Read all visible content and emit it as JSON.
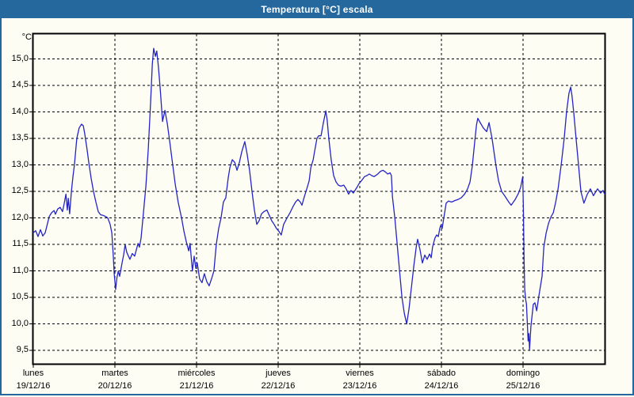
{
  "window": {
    "title": "Temperatura [°C] escala",
    "colors": {
      "title_bar": "#25689e",
      "title_text": "#ffffff",
      "window_border": "#25689e",
      "background": "#fdfdf4",
      "plot_border": "#000000",
      "grid": "#000000",
      "line": "#2424c6"
    }
  },
  "chart_data": {
    "type": "line",
    "title": "Temperatura [°C] escala",
    "ylabel": "°C",
    "xlabel": "",
    "ylim": [
      9.25,
      15.47
    ],
    "x_range_hours": [
      0,
      168
    ],
    "grid": "dashed",
    "legend": "none",
    "y_ticks": [
      {
        "value": 15.0,
        "label": "15,0"
      },
      {
        "value": 14.5,
        "label": "14,5"
      },
      {
        "value": 14.0,
        "label": "14,0"
      },
      {
        "value": 13.5,
        "label": "13,5"
      },
      {
        "value": 13.0,
        "label": "13,0"
      },
      {
        "value": 12.5,
        "label": "12,5"
      },
      {
        "value": 12.0,
        "label": "12,0"
      },
      {
        "value": 11.5,
        "label": "11,5"
      },
      {
        "value": 11.0,
        "label": "11,0"
      },
      {
        "value": 10.5,
        "label": "10,5"
      },
      {
        "value": 10.0,
        "label": "10,0"
      },
      {
        "value": 9.5,
        "label": "9,5"
      }
    ],
    "x_days": [
      {
        "name": "lunes",
        "date": "19/12/16"
      },
      {
        "name": "martes",
        "date": "20/12/16"
      },
      {
        "name": "miércoles",
        "date": "21/12/16"
      },
      {
        "name": "jueves",
        "date": "22/12/16"
      },
      {
        "name": "viernes",
        "date": "23/12/16"
      },
      {
        "name": "sábado",
        "date": "24/12/16"
      },
      {
        "name": "domingo",
        "date": "25/12/16"
      }
    ],
    "series": [
      {
        "name": "Temperatura",
        "color": "#2424c6",
        "points": [
          [
            0,
            11.72
          ],
          [
            0.7,
            11.76
          ],
          [
            1.4,
            11.65
          ],
          [
            2.1,
            11.78
          ],
          [
            2.8,
            11.66
          ],
          [
            3.5,
            11.72
          ],
          [
            4.2,
            11.9
          ],
          [
            4.7,
            12.03
          ],
          [
            5.4,
            12.1
          ],
          [
            6.1,
            12.14
          ],
          [
            6.5,
            12.07
          ],
          [
            7.2,
            12.17
          ],
          [
            7.9,
            12.2
          ],
          [
            8.6,
            12.12
          ],
          [
            9.1,
            12.28
          ],
          [
            9.6,
            12.45
          ],
          [
            10,
            12.15
          ],
          [
            10.3,
            12.37
          ],
          [
            10.7,
            12.08
          ],
          [
            11.2,
            12.5
          ],
          [
            11.7,
            12.8
          ],
          [
            12.1,
            13.0
          ],
          [
            12.8,
            13.5
          ],
          [
            13.5,
            13.7
          ],
          [
            14.2,
            13.77
          ],
          [
            14.7,
            13.74
          ],
          [
            15.1,
            13.6
          ],
          [
            15.8,
            13.3
          ],
          [
            16.3,
            13.05
          ],
          [
            17,
            12.75
          ],
          [
            17.7,
            12.5
          ],
          [
            18.4,
            12.3
          ],
          [
            19.1,
            12.12
          ],
          [
            19.8,
            12.06
          ],
          [
            20.5,
            12.05
          ],
          [
            21.2,
            12.03
          ],
          [
            21.9,
            12.0
          ],
          [
            22.6,
            11.88
          ],
          [
            23.1,
            11.72
          ],
          [
            23.5,
            11.3
          ],
          [
            23.8,
            10.95
          ],
          [
            24.2,
            10.65
          ],
          [
            24.6,
            10.88
          ],
          [
            25,
            11.0
          ],
          [
            25.4,
            10.9
          ],
          [
            26.1,
            11.15
          ],
          [
            26.6,
            11.32
          ],
          [
            27,
            11.5
          ],
          [
            27.5,
            11.35
          ],
          [
            28.4,
            11.22
          ],
          [
            29.1,
            11.33
          ],
          [
            29.8,
            11.28
          ],
          [
            30.8,
            11.52
          ],
          [
            31.2,
            11.45
          ],
          [
            31.7,
            11.62
          ],
          [
            32.4,
            12.1
          ],
          [
            33.1,
            12.6
          ],
          [
            33.8,
            13.3
          ],
          [
            34.5,
            14.2
          ],
          [
            35,
            14.9
          ],
          [
            35.4,
            15.2
          ],
          [
            35.9,
            15.05
          ],
          [
            36.3,
            15.15
          ],
          [
            36.8,
            14.85
          ],
          [
            37.3,
            14.45
          ],
          [
            38,
            13.82
          ],
          [
            38.7,
            14.03
          ],
          [
            39.4,
            13.78
          ],
          [
            40.1,
            13.45
          ],
          [
            40.8,
            13.1
          ],
          [
            41.7,
            12.65
          ],
          [
            42.6,
            12.3
          ],
          [
            43.6,
            12.0
          ],
          [
            44.3,
            11.75
          ],
          [
            45,
            11.55
          ],
          [
            45.7,
            11.38
          ],
          [
            46.1,
            11.52
          ],
          [
            46.8,
            11.0
          ],
          [
            47.3,
            11.28
          ],
          [
            47.8,
            11.05
          ],
          [
            48.2,
            11.15
          ],
          [
            48.9,
            10.85
          ],
          [
            49.6,
            10.78
          ],
          [
            50.3,
            10.95
          ],
          [
            51,
            10.8
          ],
          [
            51.7,
            10.72
          ],
          [
            52.4,
            10.85
          ],
          [
            53.1,
            11.0
          ],
          [
            53.8,
            11.5
          ],
          [
            54.5,
            11.8
          ],
          [
            55.2,
            12.0
          ],
          [
            55.9,
            12.3
          ],
          [
            56.6,
            12.38
          ],
          [
            57.3,
            12.75
          ],
          [
            57.8,
            12.95
          ],
          [
            58.5,
            13.1
          ],
          [
            59.2,
            13.05
          ],
          [
            59.9,
            12.9
          ],
          [
            60.6,
            13.05
          ],
          [
            61.3,
            13.25
          ],
          [
            62.2,
            13.44
          ],
          [
            62.9,
            13.2
          ],
          [
            63.6,
            12.9
          ],
          [
            64.3,
            12.5
          ],
          [
            65,
            12.15
          ],
          [
            65.7,
            11.88
          ],
          [
            66.4,
            11.95
          ],
          [
            67.1,
            12.08
          ],
          [
            67.8,
            12.12
          ],
          [
            68.7,
            12.15
          ],
          [
            69.4,
            12.05
          ],
          [
            70.1,
            11.95
          ],
          [
            70.8,
            11.88
          ],
          [
            71.5,
            11.8
          ],
          [
            72.2,
            11.75
          ],
          [
            72.9,
            11.68
          ],
          [
            73.6,
            11.88
          ],
          [
            74.6,
            12.0
          ],
          [
            75.5,
            12.1
          ],
          [
            76.4,
            12.22
          ],
          [
            77.1,
            12.3
          ],
          [
            77.8,
            12.35
          ],
          [
            78.5,
            12.3
          ],
          [
            79,
            12.24
          ],
          [
            79.7,
            12.4
          ],
          [
            80.4,
            12.55
          ],
          [
            81.1,
            12.7
          ],
          [
            81.6,
            12.95
          ],
          [
            82.3,
            13.1
          ],
          [
            82.7,
            13.25
          ],
          [
            83.4,
            13.5
          ],
          [
            83.9,
            13.55
          ],
          [
            84.6,
            13.55
          ],
          [
            85.3,
            13.8
          ],
          [
            86,
            14.02
          ],
          [
            86.4,
            13.85
          ],
          [
            86.9,
            13.5
          ],
          [
            87.6,
            13.1
          ],
          [
            88.3,
            12.8
          ],
          [
            89,
            12.68
          ],
          [
            89.7,
            12.62
          ],
          [
            90.4,
            12.6
          ],
          [
            91.3,
            12.62
          ],
          [
            92,
            12.55
          ],
          [
            92.7,
            12.45
          ],
          [
            93.4,
            12.52
          ],
          [
            94.1,
            12.47
          ],
          [
            95.1,
            12.57
          ],
          [
            95.8,
            12.65
          ],
          [
            96.7,
            12.72
          ],
          [
            97.4,
            12.78
          ],
          [
            98.1,
            12.8
          ],
          [
            98.8,
            12.83
          ],
          [
            99.5,
            12.8
          ],
          [
            100.2,
            12.78
          ],
          [
            101.1,
            12.82
          ],
          [
            102.1,
            12.88
          ],
          [
            102.8,
            12.9
          ],
          [
            103.5,
            12.87
          ],
          [
            104.2,
            12.83
          ],
          [
            104.9,
            12.85
          ],
          [
            105.3,
            12.8
          ],
          [
            105.6,
            12.4
          ],
          [
            106.3,
            12.0
          ],
          [
            107,
            11.5
          ],
          [
            107.7,
            11.0
          ],
          [
            108.4,
            10.5
          ],
          [
            109.1,
            10.2
          ],
          [
            109.8,
            10.0
          ],
          [
            110.5,
            10.3
          ],
          [
            111.2,
            10.7
          ],
          [
            111.9,
            11.1
          ],
          [
            112.6,
            11.45
          ],
          [
            113,
            11.6
          ],
          [
            113.7,
            11.4
          ],
          [
            114.4,
            11.15
          ],
          [
            115.1,
            11.3
          ],
          [
            115.8,
            11.22
          ],
          [
            116.5,
            11.32
          ],
          [
            117,
            11.25
          ],
          [
            117.4,
            11.45
          ],
          [
            118.1,
            11.62
          ],
          [
            118.6,
            11.68
          ],
          [
            119.1,
            11.65
          ],
          [
            119.5,
            11.8
          ],
          [
            119.8,
            11.86
          ],
          [
            120.2,
            11.8
          ],
          [
            120.7,
            12.0
          ],
          [
            121.4,
            12.28
          ],
          [
            122.1,
            12.32
          ],
          [
            123,
            12.3
          ],
          [
            124,
            12.33
          ],
          [
            124.9,
            12.35
          ],
          [
            125.8,
            12.38
          ],
          [
            126.8,
            12.45
          ],
          [
            127.7,
            12.55
          ],
          [
            128.4,
            12.68
          ],
          [
            129.1,
            13.0
          ],
          [
            129.8,
            13.45
          ],
          [
            130.3,
            13.75
          ],
          [
            130.7,
            13.88
          ],
          [
            131.4,
            13.8
          ],
          [
            132.3,
            13.7
          ],
          [
            133.3,
            13.63
          ],
          [
            134,
            13.8
          ],
          [
            134.9,
            13.5
          ],
          [
            136,
            13.0
          ],
          [
            136.8,
            12.7
          ],
          [
            137.7,
            12.5
          ],
          [
            138.6,
            12.42
          ],
          [
            139.8,
            12.3
          ],
          [
            140.5,
            12.24
          ],
          [
            141.7,
            12.35
          ],
          [
            142.6,
            12.46
          ],
          [
            143.3,
            12.58
          ],
          [
            143.9,
            12.78
          ],
          [
            144.1,
            12.2
          ],
          [
            144.3,
            11.2
          ],
          [
            144.5,
            10.65
          ],
          [
            144.8,
            10.45
          ],
          [
            145,
            10.38
          ],
          [
            145.3,
            9.95
          ],
          [
            145.5,
            9.68
          ],
          [
            145.7,
            9.82
          ],
          [
            145.9,
            9.52
          ],
          [
            146.3,
            9.95
          ],
          [
            147,
            10.37
          ],
          [
            147.5,
            10.4
          ],
          [
            148,
            10.25
          ],
          [
            148.7,
            10.55
          ],
          [
            149.6,
            10.9
          ],
          [
            150.1,
            11.45
          ],
          [
            150.8,
            11.72
          ],
          [
            151.5,
            11.9
          ],
          [
            152.2,
            12.02
          ],
          [
            152.9,
            12.1
          ],
          [
            153.6,
            12.3
          ],
          [
            154.3,
            12.55
          ],
          [
            155.2,
            13.0
          ],
          [
            156.1,
            13.5
          ],
          [
            156.8,
            14.0
          ],
          [
            157.5,
            14.35
          ],
          [
            158,
            14.47
          ],
          [
            158.4,
            14.3
          ],
          [
            158.9,
            14.0
          ],
          [
            159.6,
            13.5
          ],
          [
            160.3,
            13.0
          ],
          [
            161,
            12.5
          ],
          [
            161.9,
            12.28
          ],
          [
            162.9,
            12.45
          ],
          [
            163.8,
            12.55
          ],
          [
            164.7,
            12.42
          ],
          [
            165.9,
            12.55
          ],
          [
            166.8,
            12.47
          ],
          [
            167.5,
            12.52
          ],
          [
            168,
            12.45
          ]
        ]
      }
    ]
  }
}
